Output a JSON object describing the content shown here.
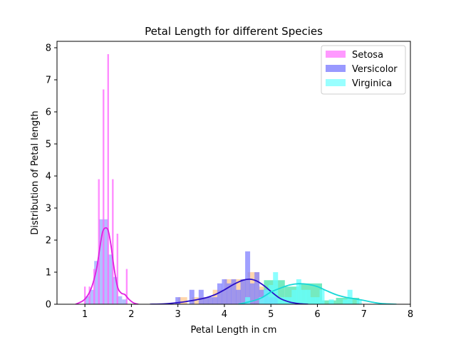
{
  "chart_data": {
    "type": "histogram",
    "title": "Petal Length for different Species",
    "xlabel": "Petal Length in cm",
    "ylabel": "Distribution of Petal length",
    "xlim": [
      0.4,
      8.0
    ],
    "ylim": [
      0,
      8.2
    ],
    "xticks": [
      "1",
      "2",
      "3",
      "4",
      "5",
      "6",
      "7",
      "8"
    ],
    "yticks": [
      "0",
      "1",
      "2",
      "3",
      "4",
      "5",
      "6",
      "7",
      "8"
    ],
    "grid": false,
    "legend_position": "top-right",
    "series": [
      {
        "name": "Setosa",
        "legend_color": "#ff99ff",
        "thin_bars": [
          {
            "x": 1.0,
            "h": 0.55
          },
          {
            "x": 1.1,
            "h": 0.55
          },
          {
            "x": 1.2,
            "h": 1.1
          },
          {
            "x": 1.3,
            "h": 3.9
          },
          {
            "x": 1.4,
            "h": 6.7
          },
          {
            "x": 1.5,
            "h": 7.8
          },
          {
            "x": 1.6,
            "h": 3.9
          },
          {
            "x": 1.7,
            "h": 2.2
          },
          {
            "x": 1.9,
            "h": 1.1
          }
        ],
        "thin_color": "#ff66ff",
        "wide_bars": [
          {
            "x": 1.05,
            "h": 0.25
          },
          {
            "x": 1.15,
            "h": 0.45
          },
          {
            "x": 1.25,
            "h": 1.35
          },
          {
            "x": 1.35,
            "h": 2.65
          },
          {
            "x": 1.45,
            "h": 2.65
          },
          {
            "x": 1.55,
            "h": 1.55
          },
          {
            "x": 1.65,
            "h": 0.85
          },
          {
            "x": 1.75,
            "h": 0.25
          },
          {
            "x": 1.85,
            "h": 0.15
          }
        ],
        "wide_color": "#aab8ff",
        "kde": {
          "color": "#e020e0",
          "x": [
            0.8,
            0.95,
            1.05,
            1.15,
            1.25,
            1.32,
            1.38,
            1.44,
            1.5,
            1.56,
            1.62,
            1.7,
            1.78,
            1.86,
            1.95,
            2.05,
            2.15
          ],
          "y": [
            0.0,
            0.1,
            0.25,
            0.55,
            1.1,
            1.75,
            2.25,
            2.38,
            2.3,
            1.85,
            1.2,
            0.55,
            0.35,
            0.3,
            0.15,
            0.04,
            0.0
          ]
        }
      },
      {
        "name": "Versicolor",
        "legend_color": "#9999ff",
        "bars": [
          {
            "x": 3.0,
            "h": 0.22
          },
          {
            "x": 3.3,
            "h": 0.45
          },
          {
            "x": 3.5,
            "h": 0.45
          },
          {
            "x": 3.6,
            "h": 0.22
          },
          {
            "x": 3.7,
            "h": 0.22
          },
          {
            "x": 3.8,
            "h": 0.22
          },
          {
            "x": 3.9,
            "h": 0.65
          },
          {
            "x": 4.0,
            "h": 0.78
          },
          {
            "x": 4.1,
            "h": 0.65
          },
          {
            "x": 4.2,
            "h": 0.78
          },
          {
            "x": 4.3,
            "h": 0.45
          },
          {
            "x": 4.4,
            "h": 0.78
          },
          {
            "x": 4.5,
            "h": 1.65
          },
          {
            "x": 4.6,
            "h": 0.65
          },
          {
            "x": 4.7,
            "h": 1.0
          },
          {
            "x": 4.8,
            "h": 0.45
          },
          {
            "x": 4.9,
            "h": 0.45
          },
          {
            "x": 5.0,
            "h": 0.22
          },
          {
            "x": 5.1,
            "h": 0.22
          }
        ],
        "bar_color": "#8080ff",
        "kde": {
          "color": "#2a10c8",
          "x": [
            2.4,
            2.7,
            3.0,
            3.2,
            3.4,
            3.6,
            3.8,
            4.0,
            4.2,
            4.4,
            4.55,
            4.7,
            4.85,
            5.0,
            5.2,
            5.4,
            5.6,
            5.8
          ],
          "y": [
            0.0,
            0.01,
            0.05,
            0.09,
            0.14,
            0.2,
            0.3,
            0.45,
            0.62,
            0.75,
            0.78,
            0.72,
            0.58,
            0.4,
            0.18,
            0.07,
            0.02,
            0.0
          ]
        }
      },
      {
        "name": "Virginica",
        "legend_color": "#99ffff",
        "bars": [
          {
            "x": 4.5,
            "h": 0.22
          },
          {
            "x": 4.8,
            "h": 0.22
          },
          {
            "x": 4.9,
            "h": 0.45
          },
          {
            "x": 5.0,
            "h": 0.6
          },
          {
            "x": 5.1,
            "h": 1.0
          },
          {
            "x": 5.2,
            "h": 0.22
          },
          {
            "x": 5.3,
            "h": 0.22
          },
          {
            "x": 5.4,
            "h": 0.22
          },
          {
            "x": 5.5,
            "h": 0.45
          },
          {
            "x": 5.6,
            "h": 0.78
          },
          {
            "x": 5.7,
            "h": 0.45
          },
          {
            "x": 5.8,
            "h": 0.45
          },
          {
            "x": 5.9,
            "h": 0.22
          },
          {
            "x": 6.0,
            "h": 0.22
          },
          {
            "x": 6.1,
            "h": 0.45
          },
          {
            "x": 6.3,
            "h": 0.15
          },
          {
            "x": 6.6,
            "h": 0.15
          },
          {
            "x": 6.7,
            "h": 0.45
          },
          {
            "x": 6.9,
            "h": 0.15
          }
        ],
        "bar_color": "#66ffff",
        "kde": {
          "color": "#18d8d8",
          "x": [
            4.3,
            4.6,
            4.8,
            5.0,
            5.2,
            5.4,
            5.6,
            5.8,
            6.0,
            6.2,
            6.4,
            6.6,
            6.8,
            7.0,
            7.2,
            7.4,
            7.7
          ],
          "y": [
            0.0,
            0.1,
            0.2,
            0.38,
            0.5,
            0.6,
            0.64,
            0.62,
            0.55,
            0.42,
            0.3,
            0.22,
            0.17,
            0.12,
            0.06,
            0.02,
            0.0
          ]
        }
      }
    ],
    "background_layers": [
      {
        "color": "#ffcc99",
        "opacity": 0.8,
        "bins": [
          {
            "x0": 3.0,
            "x1": 3.2,
            "h": 0.22
          },
          {
            "x0": 3.3,
            "x1": 3.5,
            "h": 0.22
          },
          {
            "x0": 3.5,
            "x1": 3.75,
            "h": 0.22
          },
          {
            "x0": 3.75,
            "x1": 4.0,
            "h": 0.45
          },
          {
            "x0": 4.0,
            "x1": 4.25,
            "h": 0.78
          },
          {
            "x0": 4.25,
            "x1": 4.5,
            "h": 0.78
          },
          {
            "x0": 4.5,
            "x1": 4.75,
            "h": 1.0
          },
          {
            "x0": 4.75,
            "x1": 5.0,
            "h": 0.55
          },
          {
            "x0": 5.0,
            "x1": 5.1,
            "h": 0.22
          }
        ]
      },
      {
        "color": "#66e8b8",
        "opacity": 0.9,
        "bins": [
          {
            "x0": 4.85,
            "x1": 5.3,
            "h": 0.75
          },
          {
            "x0": 5.3,
            "x1": 5.6,
            "h": 0.55
          },
          {
            "x0": 5.6,
            "x1": 6.1,
            "h": 0.65
          },
          {
            "x0": 6.1,
            "x1": 6.4,
            "h": 0.12
          },
          {
            "x0": 6.4,
            "x1": 6.9,
            "h": 0.2
          }
        ]
      }
    ]
  }
}
